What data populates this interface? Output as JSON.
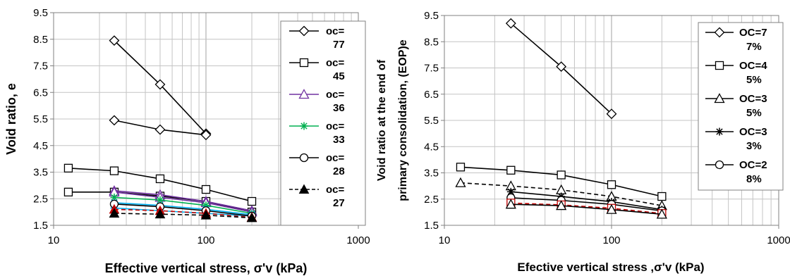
{
  "chart_data": [
    {
      "type": "scatter",
      "title": "",
      "xlabel": "Effective vertical stress, σ'v (kPa)",
      "ylabel": "Void ratio, e",
      "x_scale": "log",
      "xlim": [
        10,
        1000
      ],
      "ylim": [
        1.5,
        9.5
      ],
      "x_ticks": [
        "10",
        "100",
        "1000"
      ],
      "y_ticks": [
        "1.5",
        "2.5",
        "3.5",
        "4.5",
        "5.5",
        "6.5",
        "7.5",
        "8.5",
        "9.5"
      ],
      "grid": true,
      "legend_position": "right",
      "legend": [
        {
          "line1": "oc=",
          "line2": "77",
          "marker": "diamond",
          "color": "#000000",
          "dash": false
        },
        {
          "line1": "oc=",
          "line2": "45",
          "marker": "square",
          "color": "#000000",
          "dash": false
        },
        {
          "line1": "oc=",
          "line2": "36",
          "marker": "triangle",
          "color": "#7030a0",
          "dash": false
        },
        {
          "line1": "oc=",
          "line2": "33",
          "marker": "asterisk",
          "color": "#00b050",
          "dash": false
        },
        {
          "line1": "oc=",
          "line2": "28",
          "marker": "circle",
          "color": "#000000",
          "dash": false
        },
        {
          "line1": "oc=",
          "line2": "27",
          "marker": "filled-triangle",
          "color": "#000000",
          "dash": true
        }
      ],
      "series": [
        {
          "marker": "diamond",
          "color": "#000000",
          "dash": false,
          "x": [
            25,
            50,
            100
          ],
          "y": [
            8.45,
            6.8,
            4.95
          ]
        },
        {
          "marker": "diamond",
          "color": "#000000",
          "dash": false,
          "x": [
            25,
            50,
            100
          ],
          "y": [
            5.45,
            5.1,
            4.9
          ]
        },
        {
          "marker": "square",
          "color": "#000000",
          "dash": false,
          "x": [
            12.5,
            25,
            50,
            100,
            200
          ],
          "y": [
            3.65,
            3.55,
            3.25,
            2.85,
            2.4
          ]
        },
        {
          "marker": "square",
          "color": "#000000",
          "dash": false,
          "x": [
            12.5,
            25,
            50,
            100,
            200
          ],
          "y": [
            2.75,
            2.75,
            2.6,
            2.4,
            2.0
          ]
        },
        {
          "marker": "triangle",
          "color": "#7030a0",
          "dash": false,
          "x": [
            25,
            50,
            100,
            200
          ],
          "y": [
            2.8,
            2.65,
            2.4,
            2.05
          ]
        },
        {
          "marker": "triangle",
          "color": "#7030a0",
          "dash": false,
          "x": [
            25,
            50,
            100,
            200
          ],
          "y": [
            2.75,
            2.55,
            2.35,
            2.0
          ]
        },
        {
          "marker": "asterisk",
          "color": "#00b050",
          "dash": false,
          "x": [
            25,
            50,
            100,
            200
          ],
          "y": [
            2.55,
            2.45,
            2.25,
            1.95
          ]
        },
        {
          "marker": "asterisk",
          "color": "#00b0f0",
          "dash": false,
          "x": [
            25,
            50,
            100,
            200
          ],
          "y": [
            2.35,
            2.25,
            2.1,
            1.9
          ]
        },
        {
          "marker": "asterisk",
          "color": "#00b0f0",
          "dash": false,
          "x": [
            25,
            50,
            100,
            200
          ],
          "y": [
            2.15,
            2.05,
            1.95,
            1.85
          ]
        },
        {
          "marker": "circle",
          "color": "#000000",
          "dash": false,
          "x": [
            25,
            50,
            100,
            200
          ],
          "y": [
            2.3,
            2.2,
            2.05,
            1.85
          ]
        },
        {
          "marker": "filled-triangle",
          "color": "#c00000",
          "dash": true,
          "x": [
            25,
            50,
            100,
            200
          ],
          "y": [
            2.1,
            2.05,
            1.95,
            1.8
          ]
        },
        {
          "marker": "filled-triangle",
          "color": "#000000",
          "dash": true,
          "x": [
            25,
            50,
            100,
            200
          ],
          "y": [
            1.95,
            1.92,
            1.88,
            1.78
          ]
        }
      ]
    },
    {
      "type": "scatter",
      "title": "",
      "xlabel": "Efective vertical stress ,σ'v (kPa)",
      "ylabel_line1": "Void ratio at the end of",
      "ylabel_line2": "primary consolidation, (EOP)e",
      "x_scale": "log",
      "xlim": [
        10,
        1000
      ],
      "ylim": [
        1.5,
        9.5
      ],
      "x_ticks": [
        "10",
        "100",
        "1000"
      ],
      "y_ticks": [
        "1.5",
        "2.5",
        "3.5",
        "4.5",
        "5.5",
        "6.5",
        "7.5",
        "8.5",
        "9.5"
      ],
      "grid": true,
      "legend_position": "top-right",
      "legend": [
        {
          "line1": "OC=7",
          "line2": "7%",
          "marker": "diamond",
          "color": "#000000",
          "dash": false
        },
        {
          "line1": "OC=4",
          "line2": "5%",
          "marker": "square",
          "color": "#000000",
          "dash": false
        },
        {
          "line1": "OC=3",
          "line2": "5%",
          "marker": "triangle",
          "color": "#000000",
          "dash": false
        },
        {
          "line1": "OC=3",
          "line2": "3%",
          "marker": "asterisk",
          "color": "#000000",
          "dash": false
        },
        {
          "line1": "OC=2",
          "line2": "8%",
          "marker": "circle",
          "color": "#000000",
          "dash": false
        }
      ],
      "series": [
        {
          "marker": "diamond",
          "color": "#000000",
          "dash": false,
          "x": [
            25,
            50,
            100
          ],
          "y": [
            9.2,
            7.55,
            5.75
          ]
        },
        {
          "marker": "square",
          "color": "#000000",
          "dash": false,
          "x": [
            12.5,
            25,
            50,
            100,
            200
          ],
          "y": [
            3.72,
            3.6,
            3.42,
            3.05,
            2.6
          ]
        },
        {
          "marker": "triangle",
          "color": "#000000",
          "dash": true,
          "x": [
            12.5,
            25,
            50,
            100,
            200
          ],
          "y": [
            3.12,
            3.0,
            2.85,
            2.6,
            2.25
          ]
        },
        {
          "marker": "asterisk",
          "color": "#000000",
          "dash": false,
          "x": [
            25,
            50,
            100,
            200
          ],
          "y": [
            2.78,
            2.6,
            2.4,
            2.1
          ]
        },
        {
          "marker": "circle",
          "color": "#000000",
          "dash": false,
          "x": [
            25,
            50,
            100,
            200
          ],
          "y": [
            2.55,
            2.45,
            2.3,
            2.05
          ]
        },
        {
          "marker": "square",
          "color": "#c00000",
          "dash": true,
          "x": [
            25,
            50,
            100,
            200
          ],
          "y": [
            2.35,
            2.28,
            2.15,
            1.95
          ]
        },
        {
          "marker": "triangle",
          "color": "#000000",
          "dash": false,
          "x": [
            25,
            50,
            100,
            200
          ],
          "y": [
            2.3,
            2.25,
            2.1,
            1.92
          ]
        }
      ]
    }
  ]
}
